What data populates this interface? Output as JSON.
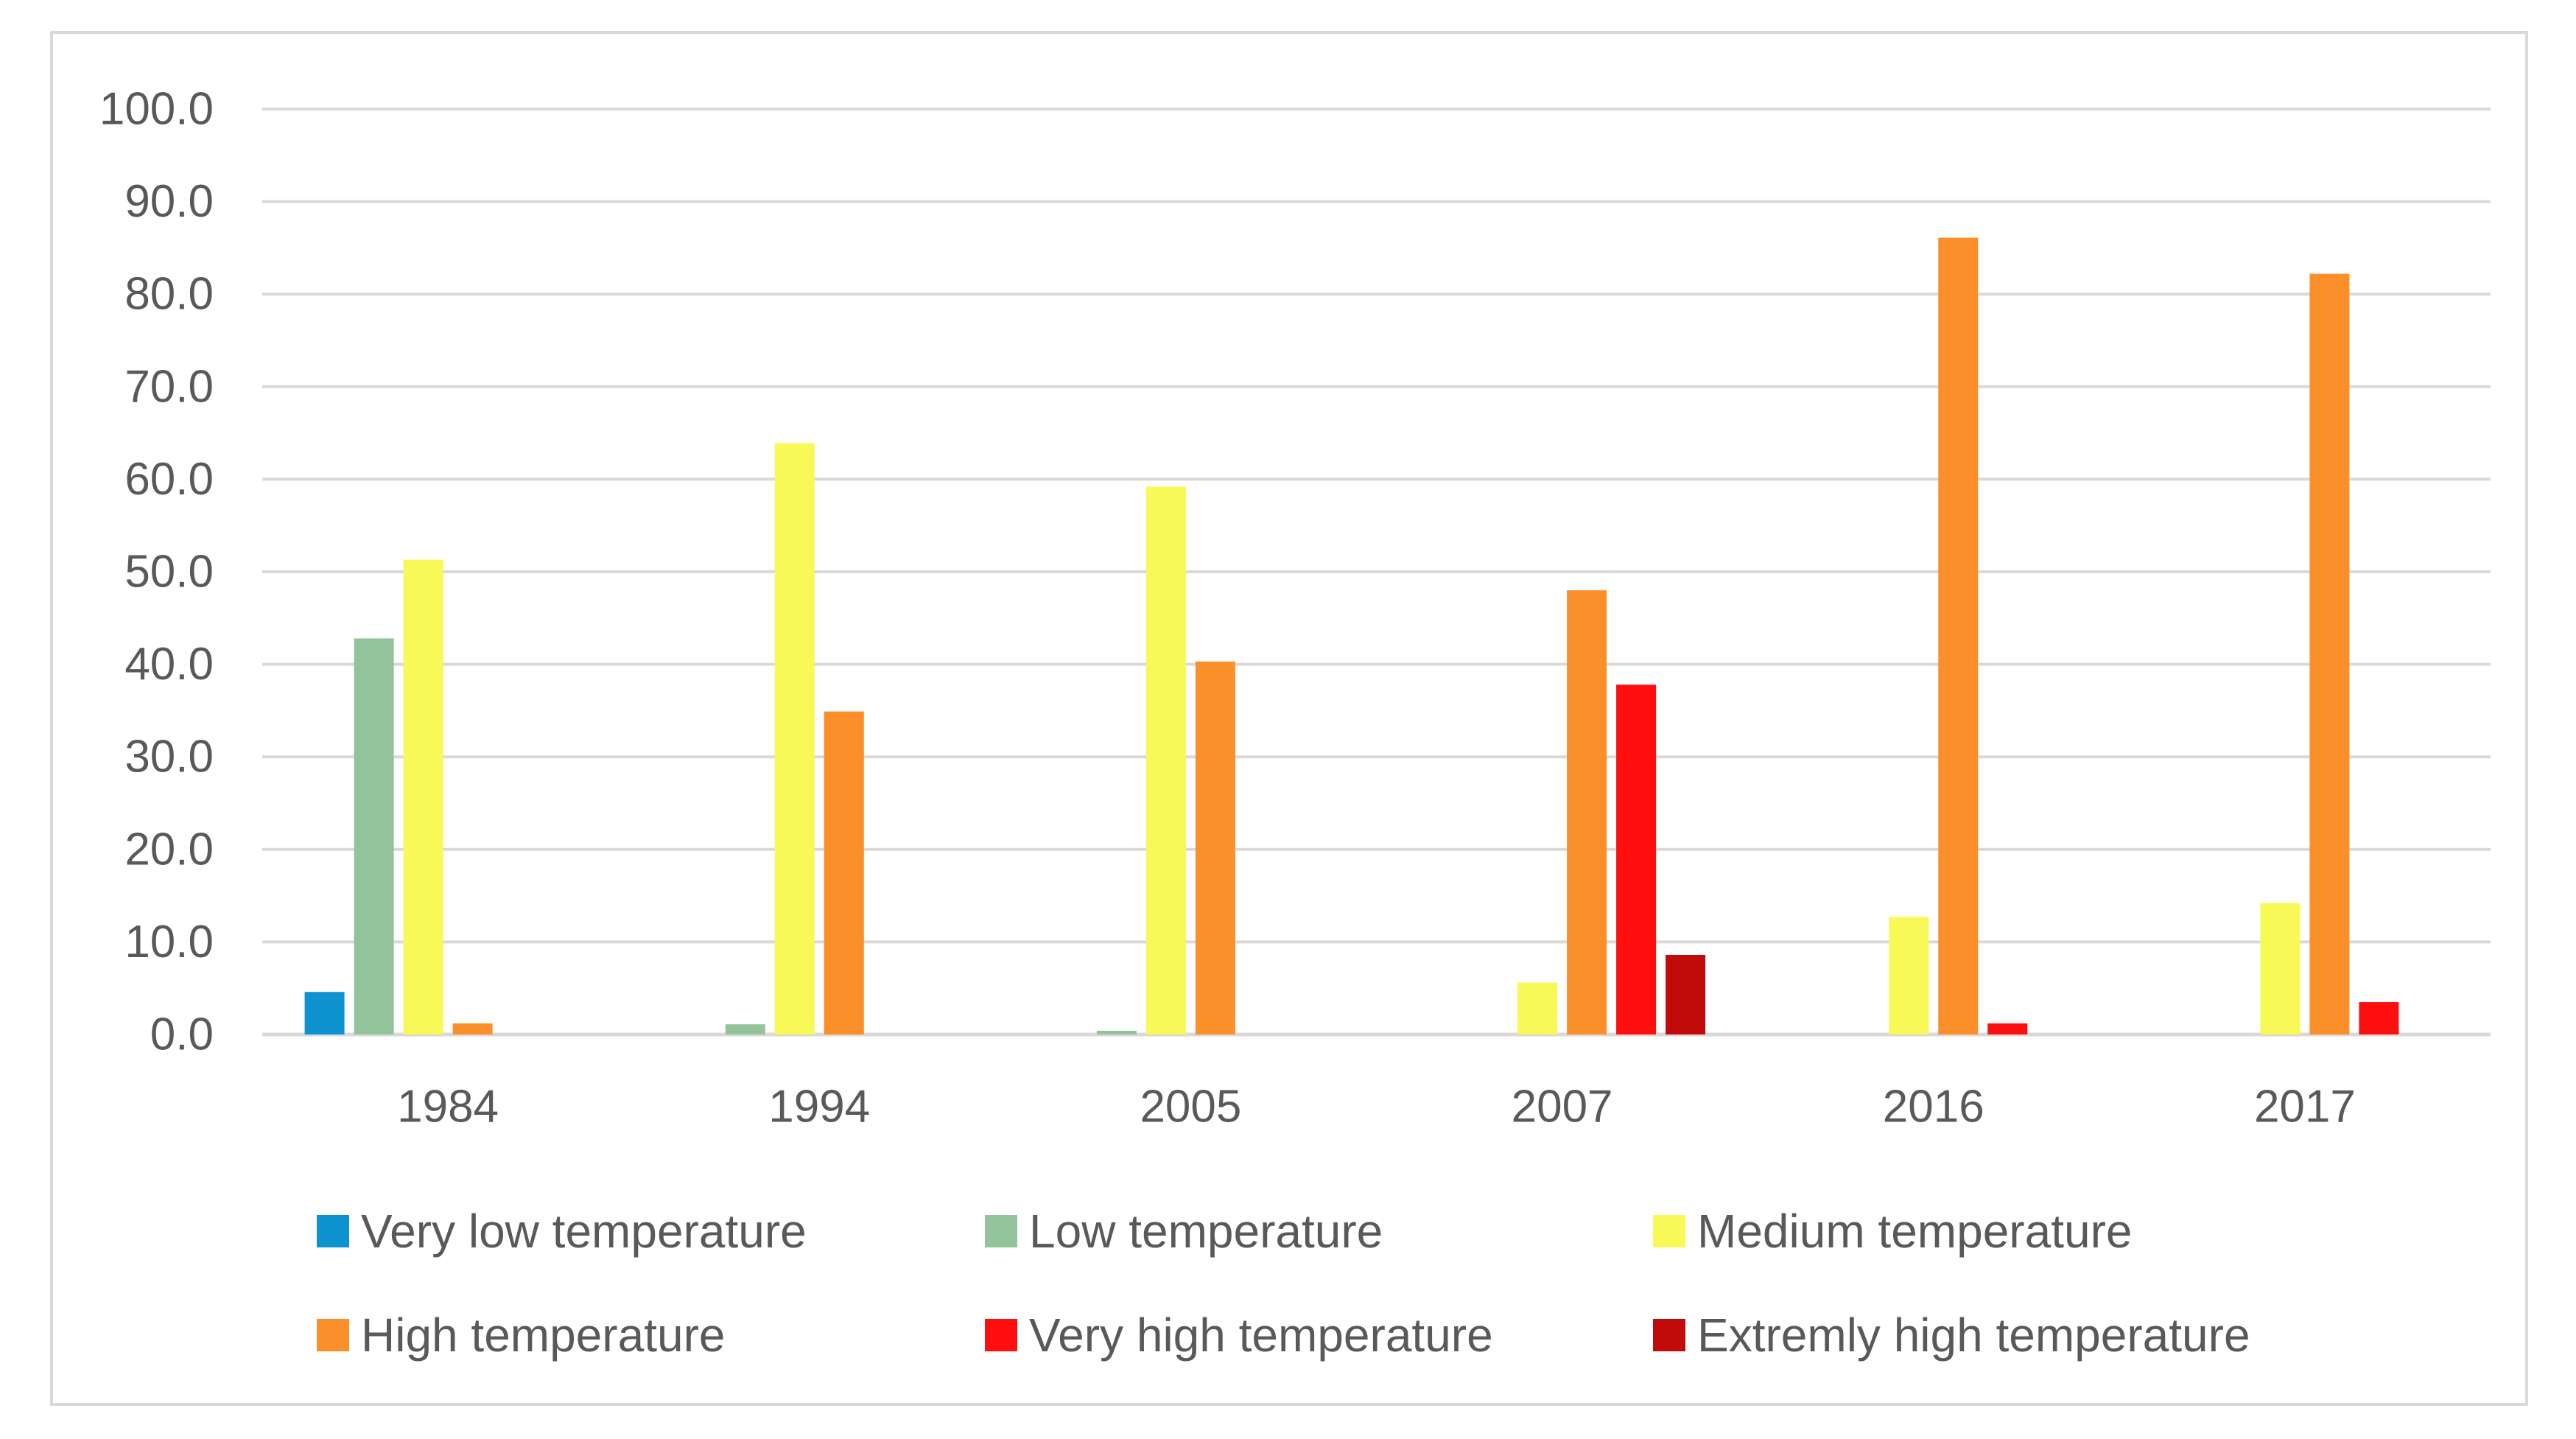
{
  "chart_data": {
    "type": "bar",
    "title": "",
    "xlabel": "",
    "ylabel": "",
    "ylim": [
      0,
      100
    ],
    "yticks": [
      "0.0",
      "10.0",
      "20.0",
      "30.0",
      "40.0",
      "50.0",
      "60.0",
      "70.0",
      "80.0",
      "90.0",
      "100.0"
    ],
    "grid": true,
    "legend_position": "bottom",
    "categories": [
      "1984",
      "1994",
      "2005",
      "2007",
      "2016",
      "2017"
    ],
    "series": [
      {
        "name": "Very low temperature",
        "color": "#0e93d0",
        "values": [
          4.6,
          0,
          0,
          0,
          0,
          0
        ]
      },
      {
        "name": "Low temperature",
        "color": "#93c39b",
        "values": [
          42.8,
          1.1,
          0.4,
          0,
          0,
          0
        ]
      },
      {
        "name": "Medium temperature",
        "color": "#f8f857",
        "values": [
          51.3,
          63.9,
          59.2,
          5.6,
          12.7,
          14.2
        ]
      },
      {
        "name": "High temperature",
        "color": "#fb8f29",
        "values": [
          1.2,
          34.9,
          40.3,
          48.0,
          86.1,
          82.2
        ]
      },
      {
        "name": "Very high temperature",
        "color": "#fe0e0e",
        "values": [
          0,
          0,
          0,
          37.8,
          1.2,
          3.5
        ]
      },
      {
        "name": "Extremly high temperature",
        "color": "#c10a0a",
        "values": [
          0,
          0,
          0,
          8.6,
          0,
          0
        ]
      }
    ]
  }
}
